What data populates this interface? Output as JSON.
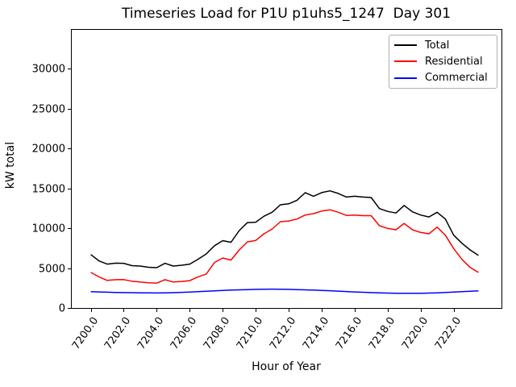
{
  "figure": {
    "background": "#ffffff"
  },
  "chart_data": {
    "type": "line",
    "title": "Timeseries Load for P1U p1uhs5_1247  Day 301",
    "xlabel": "Hour of Year",
    "ylabel": "kW total",
    "grid": false,
    "legend_position": "upper right",
    "legend_border_color": "#b0b0b0",
    "xlim": [
      7198.8,
      7224.9
    ],
    "ylim": [
      0,
      34950
    ],
    "x_ticks": [
      7200,
      7202,
      7204,
      7206,
      7208,
      7210,
      7212,
      7214,
      7216,
      7218,
      7220,
      7222
    ],
    "x_tick_labels": [
      "7200.0",
      "7202.0",
      "7204.0",
      "7206.0",
      "7208.0",
      "7210.0",
      "7212.0",
      "7214.0",
      "7216.0",
      "7218.0",
      "7220.0",
      "7222.0"
    ],
    "x_tick_rotation_deg": -55,
    "y_ticks": [
      0,
      5000,
      10000,
      15000,
      20000,
      25000,
      30000
    ],
    "y_tick_labels": [
      "0",
      "5000",
      "10000",
      "15000",
      "20000",
      "25000",
      "30000"
    ],
    "x_start": 7200.0,
    "x_step": 0.5,
    "series": [
      {
        "name": "Total",
        "color": "#000000",
        "values": [
          6700,
          5900,
          5500,
          5620,
          5600,
          5300,
          5250,
          5100,
          5050,
          5600,
          5250,
          5350,
          5500,
          6100,
          6770,
          7800,
          8430,
          8230,
          9700,
          10700,
          10750,
          11500,
          12000,
          12930,
          13050,
          13500,
          14440,
          14000,
          14450,
          14680,
          14350,
          13900,
          14000,
          13900,
          13840,
          12450,
          12100,
          11900,
          12850,
          12050,
          11650,
          11400,
          11990,
          11140,
          9120,
          8110,
          7270,
          6600
        ]
      },
      {
        "name": "Residential",
        "color": "#ff0000",
        "values": [
          4450,
          3900,
          3450,
          3550,
          3560,
          3350,
          3250,
          3150,
          3120,
          3550,
          3250,
          3320,
          3420,
          3900,
          4240,
          5700,
          6260,
          6000,
          7270,
          8280,
          8450,
          9290,
          9900,
          10810,
          10900,
          11140,
          11645,
          11820,
          12150,
          12300,
          12000,
          11600,
          11650,
          11570,
          11570,
          10300,
          9965,
          9800,
          10600,
          9800,
          9460,
          9290,
          10130,
          9120,
          7440,
          6090,
          5080,
          4450
        ]
      },
      {
        "name": "Commercial",
        "color": "#0000ff",
        "values": [
          2050,
          2010,
          1980,
          1950,
          1930,
          1920,
          1900,
          1890,
          1880,
          1890,
          1920,
          1960,
          2000,
          2050,
          2100,
          2150,
          2200,
          2240,
          2270,
          2300,
          2330,
          2350,
          2360,
          2350,
          2330,
          2300,
          2270,
          2240,
          2200,
          2160,
          2110,
          2060,
          2010,
          1970,
          1930,
          1900,
          1870,
          1850,
          1840,
          1840,
          1850,
          1870,
          1900,
          1940,
          1990,
          2040,
          2090,
          2140
        ]
      }
    ]
  }
}
